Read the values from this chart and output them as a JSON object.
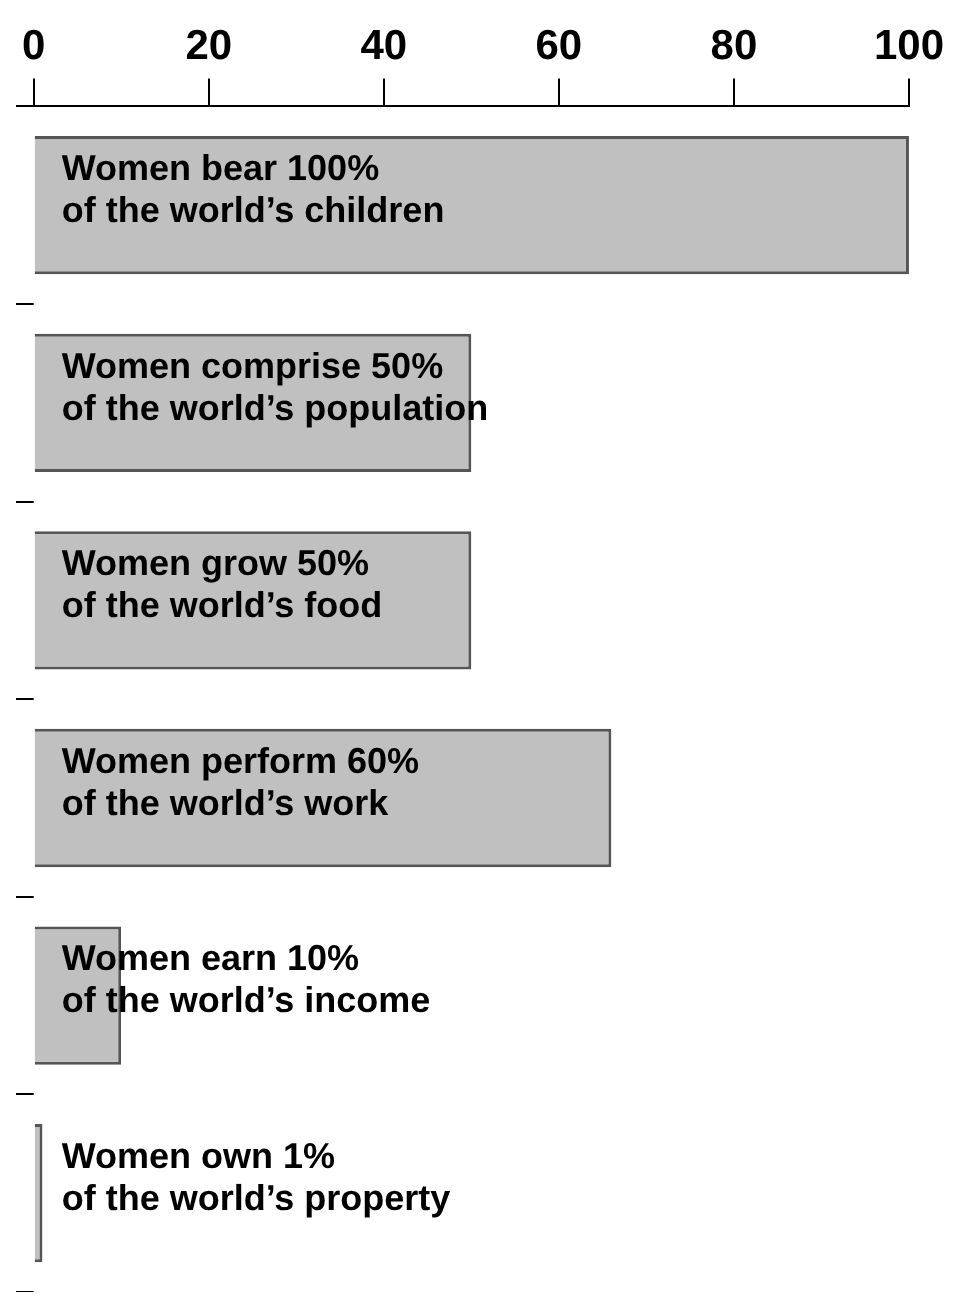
{
  "chart_data": {
    "type": "bar",
    "orientation": "horizontal",
    "categories": [
      "Women bear 100%\nof the world’s children",
      "Women comprise 50%\nof the world’s population",
      "Women grow 50%\nof the world’s food",
      "Women perform 60%\nof the world’s work",
      "Women earn 10%\nof the world’s income",
      "Women own 1%\nof the world’s property"
    ],
    "values": [
      100,
      50,
      50,
      66,
      10,
      1
    ],
    "color": "#c0c0c0",
    "xlim": [
      0,
      100
    ],
    "xticks": [
      0,
      20,
      40,
      60,
      80,
      100
    ],
    "grid": false,
    "legend": false
  }
}
